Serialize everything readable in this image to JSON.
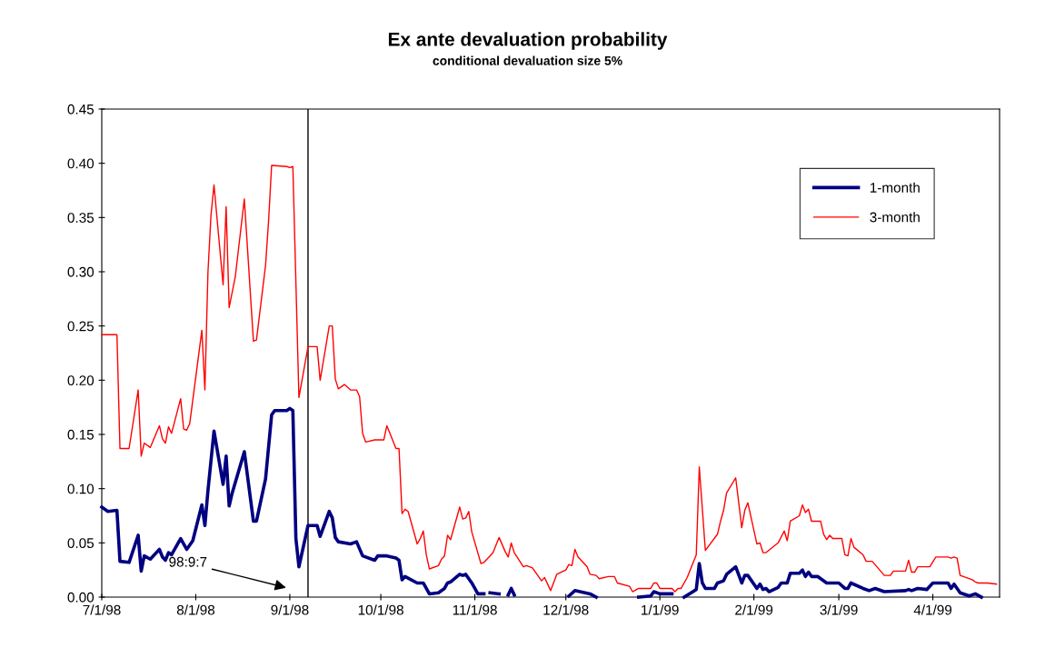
{
  "chart_data": {
    "type": "line",
    "title": "Ex ante devaluation probability",
    "subtitle": "conditional devaluation size 5%",
    "xlim": [
      "1998-07-01",
      "1999-04-23"
    ],
    "xticks": [
      {
        "value": "1998-07-01",
        "label": "7/1/98"
      },
      {
        "value": "1998-08-01",
        "label": "8/1/98"
      },
      {
        "value": "1998-09-01",
        "label": "9/1/98"
      },
      {
        "value": "1998-10-01",
        "label": "10/1/98"
      },
      {
        "value": "1998-11-01",
        "label": "11/1/98"
      },
      {
        "value": "1998-12-01",
        "label": "12/1/98"
      },
      {
        "value": "1999-01-01",
        "label": "1/1/99"
      },
      {
        "value": "1999-02-01",
        "label": "2/1/99"
      },
      {
        "value": "1999-03-01",
        "label": "3/1/99"
      },
      {
        "value": "1999-04-01",
        "label": "4/1/99"
      }
    ],
    "ylim": [
      0,
      0.45
    ],
    "yticks": [
      {
        "value": 0,
        "label": "0.00"
      },
      {
        "value": 0.05,
        "label": "0.05"
      },
      {
        "value": 0.1,
        "label": "0.10"
      },
      {
        "value": 0.15,
        "label": "0.15"
      },
      {
        "value": 0.2,
        "label": "0.20"
      },
      {
        "value": 0.25,
        "label": "0.25"
      },
      {
        "value": 0.3,
        "label": "0.30"
      },
      {
        "value": 0.35,
        "label": "0.35"
      },
      {
        "value": 0.4,
        "label": "0.40"
      },
      {
        "value": 0.45,
        "label": "0.45"
      }
    ],
    "grid": false,
    "legend": "top right",
    "marker": "none",
    "line_style": "solid",
    "ref_lines": [
      {
        "axis": "x",
        "value": "1998-09-07",
        "color": "#000000"
      }
    ],
    "annotations": [
      "98:9:7"
    ],
    "series": [
      {
        "name": "1-month",
        "color": "#000080",
        "x": [
          "1998-07-01",
          "1998-07-03",
          "1998-07-06",
          "1998-07-07",
          "1998-07-10",
          "1998-07-13",
          "1998-07-14",
          "1998-07-15",
          "1998-07-17",
          "1998-07-20",
          "1998-07-21",
          "1998-07-22",
          "1998-07-23",
          "1998-07-24",
          "1998-07-27",
          "1998-07-29",
          "1998-07-31",
          "1998-08-03",
          "1998-08-04",
          "1998-08-05",
          "1998-08-07",
          "1998-08-10",
          "1998-08-11",
          "1998-08-12",
          "1998-08-13",
          "1998-08-17",
          "1998-08-20",
          "1998-08-21",
          "1998-08-24",
          "1998-08-26",
          "1998-08-27",
          "1998-08-31",
          "1998-09-01",
          "1998-09-02",
          "1998-09-03",
          "1998-09-04",
          "1998-09-07",
          "1998-09-10",
          "1998-09-11",
          "1998-09-14",
          "1998-09-15",
          "1998-09-16",
          "1998-09-17",
          "1998-09-21",
          "1998-09-23",
          "1998-09-25",
          "1998-09-29",
          "1998-09-30",
          "1998-10-03",
          "1998-10-06",
          "1998-10-07",
          "1998-10-08",
          "1998-10-09",
          "1998-10-13",
          "1998-10-15",
          "1998-10-17",
          "1998-10-20",
          "1998-10-22",
          "1998-10-23",
          "1998-10-24",
          "1998-10-27",
          "1998-10-28",
          "1998-10-29",
          "1998-10-31",
          "1998-11-02",
          "1998-11-04",
          "1998-11-05",
          "1998-11-06",
          "1998-11-09",
          "1998-11-10",
          "1998-11-12",
          "1998-11-13",
          "1998-11-14",
          "1998-11-15",
          "1998-12-02",
          "1998-12-04",
          "1998-12-09",
          "1998-12-11",
          "1998-12-12",
          "1998-12-25",
          "1998-12-29",
          "1998-12-30",
          "1999-01-01",
          "1999-01-05",
          "1999-01-06",
          "1999-01-09",
          "1999-01-13",
          "1999-01-14",
          "1999-01-15",
          "1999-01-16",
          "1999-01-19",
          "1999-01-20",
          "1999-01-22",
          "1999-01-23",
          "1999-01-26",
          "1999-01-28",
          "1999-01-29",
          "1999-01-30",
          "1999-02-02",
          "1999-02-03",
          "1999-02-04",
          "1999-02-05",
          "1999-02-06",
          "1999-02-09",
          "1999-02-10",
          "1999-02-12",
          "1999-02-13",
          "1999-02-16",
          "1999-02-17",
          "1999-02-18",
          "1999-02-19",
          "1999-02-20",
          "1999-02-22",
          "1999-02-25",
          "1999-03-01",
          "1999-03-03",
          "1999-03-04",
          "1999-03-05",
          "1999-03-09",
          "1999-03-11",
          "1999-03-13",
          "1999-03-16",
          "1999-03-23",
          "1999-03-24",
          "1999-03-25",
          "1999-03-27",
          "1999-03-30",
          "1999-04-01",
          "1999-04-06",
          "1999-04-07",
          "1999-04-08",
          "1999-04-10",
          "1999-04-13",
          "1999-04-15",
          "1999-04-17"
        ],
        "values": [
          0.083,
          0.079,
          0.08,
          0.033,
          0.032,
          0.057,
          0.024,
          0.038,
          0.035,
          0.044,
          0.037,
          0.034,
          0.041,
          0.039,
          0.054,
          0.044,
          0.052,
          0.085,
          0.066,
          0.098,
          0.153,
          0.104,
          0.13,
          0.084,
          0.096,
          0.134,
          0.07,
          0.07,
          0.109,
          0.168,
          0.172,
          0.172,
          0.174,
          0.172,
          0.054,
          0.028,
          0.066,
          0.066,
          0.056,
          0.079,
          0.073,
          0.055,
          0.051,
          0.049,
          0.051,
          0.038,
          0.034,
          0.038,
          0.038,
          0.036,
          0.034,
          0.016,
          0.019,
          0.013,
          0.013,
          0.003,
          0.004,
          0.008,
          0.013,
          0.014,
          0.021,
          0.02,
          0.021,
          0.013,
          0.003,
          0.003,
          null,
          0.004,
          0.003,
          null,
          0.002,
          0.008,
          0.002,
          null,
          0.001,
          0.006,
          0.003,
          0.0,
          null,
          0.0,
          0.001,
          0.005,
          0.003,
          0.003,
          null,
          0.0,
          0.007,
          0.031,
          0.013,
          0.008,
          0.008,
          0.013,
          0.015,
          0.021,
          0.028,
          0.013,
          0.02,
          0.02,
          0.008,
          0.012,
          0.007,
          0.008,
          0.005,
          0.009,
          0.013,
          0.013,
          0.022,
          0.022,
          0.025,
          0.019,
          0.023,
          0.019,
          0.019,
          0.013,
          0.013,
          0.008,
          0.008,
          0.013,
          0.008,
          0.006,
          0.008,
          0.005,
          0.006,
          0.007,
          0.006,
          0.008,
          0.007,
          0.013,
          0.013,
          0.008,
          0.012,
          0.004,
          0.001,
          0.003,
          0.0
        ]
      },
      {
        "name": "3-month",
        "color": "#ff0000",
        "x": [
          "1998-07-01",
          "1998-07-06",
          "1998-07-07",
          "1998-07-10",
          "1998-07-13",
          "1998-07-14",
          "1998-07-15",
          "1998-07-17",
          "1998-07-20",
          "1998-07-21",
          "1998-07-22",
          "1998-07-23",
          "1998-07-24",
          "1998-07-27",
          "1998-07-28",
          "1998-07-29",
          "1998-07-30",
          "1998-08-03",
          "1998-08-04",
          "1998-08-05",
          "1998-08-06",
          "1998-08-07",
          "1998-08-10",
          "1998-08-11",
          "1998-08-12",
          "1998-08-14",
          "1998-08-17",
          "1998-08-20",
          "1998-08-21",
          "1998-08-24",
          "1998-08-25",
          "1998-08-26",
          "1998-08-31",
          "1998-09-01",
          "1998-09-02",
          "1998-09-04",
          "1998-09-07",
          "1998-09-10",
          "1998-09-11",
          "1998-09-14",
          "1998-09-15",
          "1998-09-16",
          "1998-09-17",
          "1998-09-19",
          "1998-09-21",
          "1998-09-23",
          "1998-09-24",
          "1998-09-25",
          "1998-09-26",
          "1998-09-29",
          "1998-10-02",
          "1998-10-03",
          "1998-10-06",
          "1998-10-07",
          "1998-10-08",
          "1998-10-09",
          "1998-10-10",
          "1998-10-13",
          "1998-10-14",
          "1998-10-15",
          "1998-10-16",
          "1998-10-17",
          "1998-10-20",
          "1998-10-21",
          "1998-10-22",
          "1998-10-23",
          "1998-10-24",
          "1998-10-27",
          "1998-10-28",
          "1998-10-29",
          "1998-10-30",
          "1998-10-31",
          "1998-11-03",
          "1998-11-04",
          "1998-11-06",
          "1998-11-07",
          "1998-11-09",
          "1998-11-11",
          "1998-11-12",
          "1998-11-13",
          "1998-11-14",
          "1998-11-17",
          "1998-11-18",
          "1998-11-20",
          "1998-11-23",
          "1998-11-24",
          "1998-11-26",
          "1998-11-28",
          "1998-12-01",
          "1998-12-02",
          "1998-12-03",
          "1998-12-04",
          "1998-12-05",
          "1998-12-08",
          "1998-12-09",
          "1998-12-11",
          "1998-12-12",
          "1998-12-15",
          "1998-12-17",
          "1998-12-18",
          "1998-12-22",
          "1998-12-23",
          "1998-12-25",
          "1998-12-29",
          "1998-12-30",
          "1998-12-31",
          "1999-01-01",
          "1999-01-05",
          "1999-01-06",
          "1999-01-07",
          "1999-01-08",
          "1999-01-10",
          "1999-01-13",
          "1999-01-14",
          "1999-01-16",
          "1999-01-20",
          "1999-01-21",
          "1999-01-22",
          "1999-01-23",
          "1999-01-26",
          "1999-01-28",
          "1999-01-29",
          "1999-01-30",
          "1999-02-02",
          "1999-02-03",
          "1999-02-04",
          "1999-02-05",
          "1999-02-09",
          "1999-02-11",
          "1999-02-12",
          "1999-02-13",
          "1999-02-16",
          "1999-02-17",
          "1999-02-18",
          "1999-02-19",
          "1999-02-20",
          "1999-02-23",
          "1999-02-24",
          "1999-02-25",
          "1999-02-26",
          "1999-02-27",
          "1999-03-02",
          "1999-03-03",
          "1999-03-04",
          "1999-03-05",
          "1999-03-06",
          "1999-03-09",
          "1999-03-10",
          "1999-03-12",
          "1999-03-16",
          "1999-03-18",
          "1999-03-19",
          "1999-03-23",
          "1999-03-24",
          "1999-03-25",
          "1999-03-26",
          "1999-03-27",
          "1999-03-31",
          "1999-04-02",
          "1999-04-06",
          "1999-04-07",
          "1999-04-08",
          "1999-04-09",
          "1999-04-10",
          "1999-04-14",
          "1999-04-15",
          "1999-04-16",
          "1999-04-19",
          "1999-04-22"
        ],
        "values": [
          0.242,
          0.242,
          0.137,
          0.137,
          0.191,
          0.13,
          0.142,
          0.138,
          0.158,
          0.146,
          0.142,
          0.157,
          0.151,
          0.183,
          0.155,
          0.154,
          0.16,
          0.246,
          0.191,
          0.299,
          0.352,
          0.38,
          0.288,
          0.36,
          0.267,
          0.295,
          0.367,
          0.236,
          0.237,
          0.306,
          0.347,
          0.398,
          0.397,
          0.396,
          0.397,
          0.184,
          0.231,
          0.231,
          0.2,
          0.25,
          0.25,
          0.201,
          0.192,
          0.196,
          0.191,
          0.191,
          0.185,
          0.151,
          0.143,
          0.145,
          0.145,
          0.158,
          0.137,
          0.137,
          0.077,
          0.081,
          0.079,
          0.049,
          0.054,
          0.061,
          0.039,
          0.026,
          0.029,
          0.035,
          0.038,
          0.057,
          0.053,
          0.083,
          0.072,
          0.073,
          0.079,
          0.06,
          0.031,
          0.032,
          0.038,
          0.041,
          0.055,
          0.042,
          0.037,
          0.05,
          0.041,
          0.028,
          0.029,
          0.027,
          0.015,
          0.018,
          0.006,
          0.021,
          0.025,
          0.03,
          0.029,
          0.044,
          0.037,
          0.028,
          0.021,
          0.02,
          0.017,
          0.019,
          0.019,
          0.013,
          0.01,
          0.005,
          0.008,
          0.008,
          0.013,
          0.013,
          0.008,
          0.008,
          0.005,
          0.008,
          0.008,
          0.018,
          0.039,
          0.12,
          0.043,
          0.058,
          0.07,
          0.08,
          0.096,
          0.11,
          0.064,
          0.08,
          0.087,
          0.049,
          0.05,
          0.041,
          0.041,
          0.05,
          0.061,
          0.052,
          0.07,
          0.075,
          0.085,
          0.078,
          0.081,
          0.07,
          0.07,
          0.058,
          0.053,
          0.057,
          0.054,
          0.054,
          0.039,
          0.038,
          0.054,
          0.046,
          0.039,
          0.033,
          0.033,
          0.02,
          0.02,
          0.024,
          0.024,
          0.034,
          0.023,
          0.023,
          0.028,
          0.028,
          0.037,
          0.037,
          0.036,
          0.037,
          0.036,
          0.02,
          0.016,
          0.014,
          0.013,
          0.013,
          0.012
        ]
      }
    ]
  }
}
